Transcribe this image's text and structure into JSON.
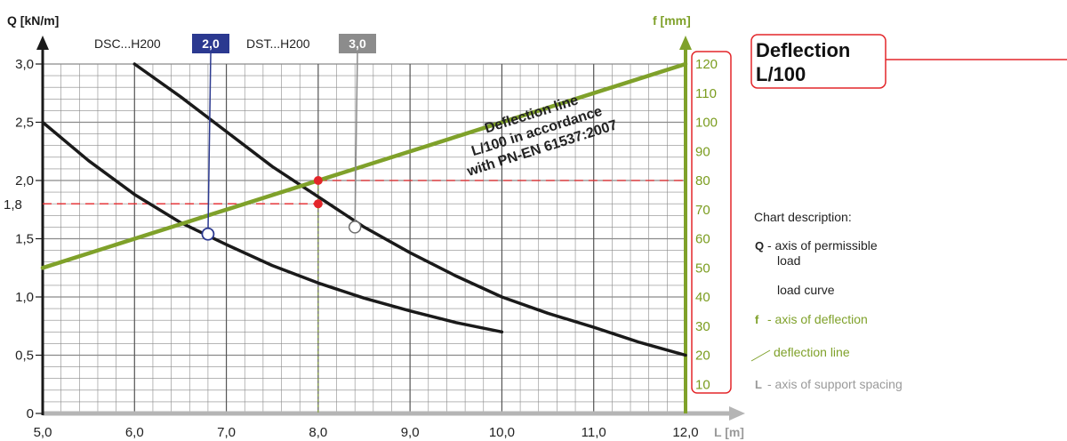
{
  "chart_data": {
    "type": "line",
    "x_axis": {
      "label": "L [m]",
      "min": 5.0,
      "max": 12.0,
      "ticks": [
        5.0,
        6.0,
        7.0,
        8.0,
        9.0,
        10.0,
        11.0,
        12.0
      ],
      "tick_labels": [
        "5,0",
        "6,0",
        "7,0",
        "8,0",
        "9,0",
        "10,0",
        "11,0",
        "12,0"
      ]
    },
    "y_axis_left": {
      "label": "Q [kN/m]",
      "min": 0,
      "max": 3.0,
      "ticks": [
        0,
        0.5,
        1.0,
        1.5,
        2.0,
        2.5,
        3.0
      ],
      "tick_labels": [
        "0",
        "0,5",
        "1,0",
        "1,5",
        "2,0",
        "2,5",
        "3,0"
      ]
    },
    "y_axis_right": {
      "label": "f [mm]",
      "min": 0,
      "max": 120,
      "ticks": [
        10,
        20,
        30,
        40,
        50,
        60,
        70,
        80,
        90,
        100,
        110,
        120
      ],
      "tick_labels": [
        "10",
        "20",
        "30",
        "40",
        "50",
        "60",
        "70",
        "80",
        "90",
        "100",
        "110",
        "120"
      ]
    },
    "grid": true,
    "series": [
      {
        "name": "DSC...H200",
        "badge": "2,0",
        "color": "#1a1a1a",
        "badge_color": "#2b3990",
        "x": [
          5.0,
          5.5,
          6.0,
          6.5,
          7.0,
          7.5,
          8.0,
          8.5,
          9.0,
          9.5,
          10.0
        ],
        "y": [
          2.5,
          2.17,
          1.88,
          1.64,
          1.45,
          1.27,
          1.12,
          0.99,
          0.88,
          0.78,
          0.7
        ],
        "marker": {
          "x": 6.8,
          "y": 1.54
        }
      },
      {
        "name": "DST...H200",
        "badge": "3,0",
        "color": "#1a1a1a",
        "badge_color": "#8c8c8c",
        "x": [
          6.0,
          6.5,
          7.0,
          7.5,
          8.0,
          8.5,
          9.0,
          9.5,
          10.0,
          10.5,
          11.0,
          11.5,
          12.0
        ],
        "y": [
          3.0,
          2.72,
          2.42,
          2.12,
          1.86,
          1.6,
          1.38,
          1.18,
          1.0,
          0.86,
          0.74,
          0.61,
          0.5
        ],
        "marker": {
          "x": 8.4,
          "y": 1.6
        }
      },
      {
        "name": "deflection line",
        "color": "#7fa12a",
        "axis": "right",
        "x": [
          5.0,
          12.0
        ],
        "y": [
          50,
          120
        ]
      }
    ],
    "reference": {
      "x": 8.0,
      "q": 1.8,
      "q_label": "1,8",
      "f": 80,
      "f_label": "80",
      "color": "#e3262a"
    },
    "annotation": {
      "lines": [
        "Deflection line",
        "L/100 in accordance",
        "with PN-EN 61537:2007"
      ]
    },
    "callout": {
      "lines": [
        "Deflection",
        "L/100"
      ]
    },
    "legend": {
      "title": "Chart description:",
      "items": [
        {
          "key": "Q",
          "text": "- axis of permissible",
          "text2": "load",
          "color": "#222222"
        },
        {
          "key": "",
          "text": "load curve",
          "color": "#222222"
        },
        {
          "key": "f",
          "text": "- axis of deflection",
          "color": "#7fa12a"
        },
        {
          "key": "",
          "text": "deflection line",
          "color": "#7fa12a"
        },
        {
          "key": "L",
          "text": "- axis of support spacing",
          "color": "#9a9a9a"
        }
      ]
    }
  }
}
